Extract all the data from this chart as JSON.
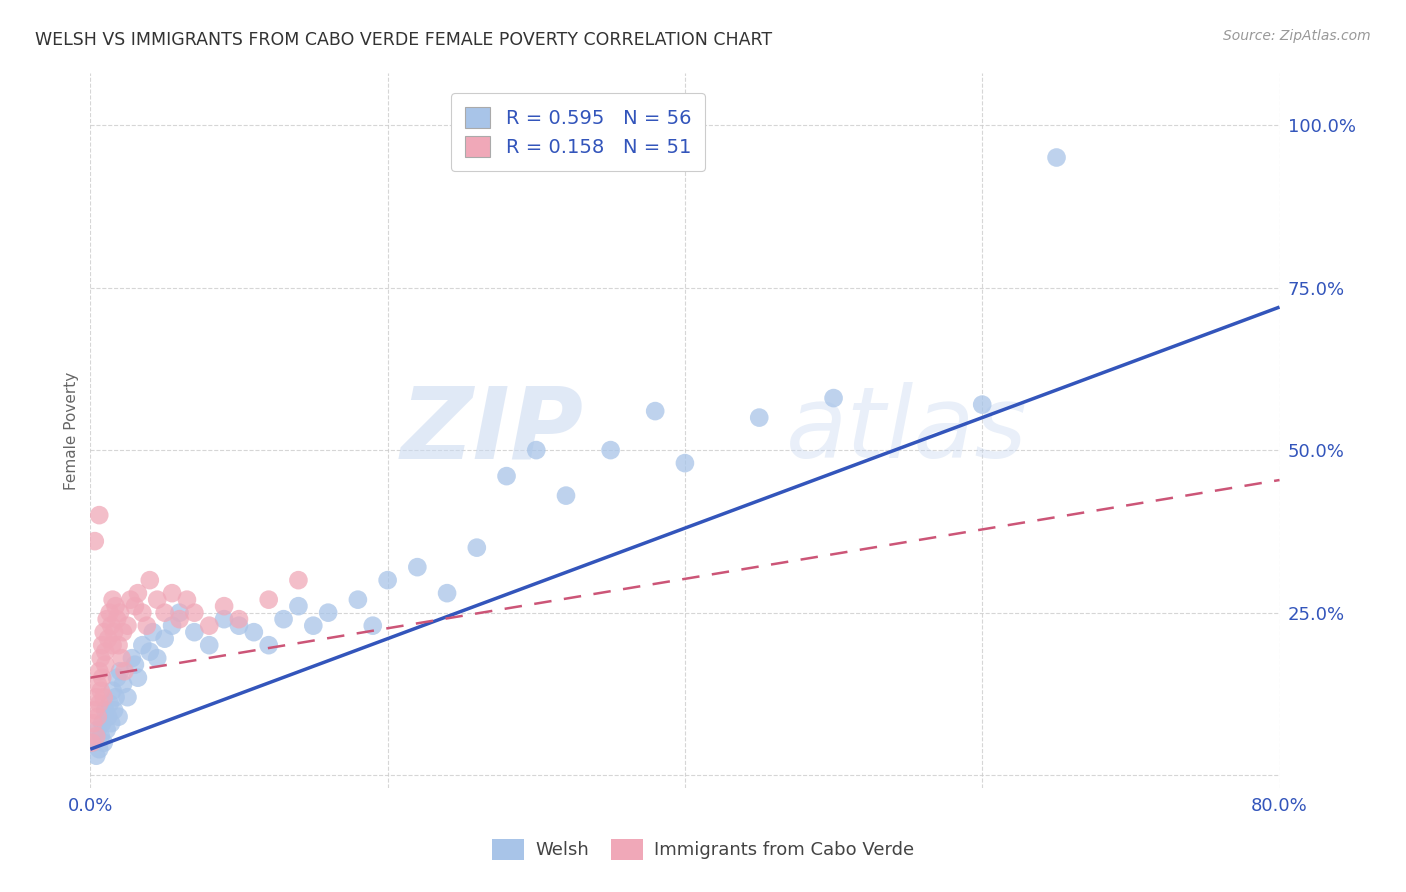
{
  "title": "WELSH VS IMMIGRANTS FROM CABO VERDE FEMALE POVERTY CORRELATION CHART",
  "source": "Source: ZipAtlas.com",
  "ylabel": "Female Poverty",
  "xlim": [
    0.0,
    0.8
  ],
  "ylim": [
    -0.02,
    1.08
  ],
  "welsh_color": "#a8c4e8",
  "cabo_verde_color": "#f0a8b8",
  "welsh_line_color": "#3355bb",
  "cabo_verde_line_color": "#cc5577",
  "welsh_R": 0.595,
  "welsh_N": 56,
  "cabo_verde_R": 0.158,
  "cabo_verde_N": 51,
  "welsh_x": [
    0.002,
    0.004,
    0.005,
    0.006,
    0.007,
    0.008,
    0.009,
    0.01,
    0.011,
    0.012,
    0.013,
    0.014,
    0.015,
    0.016,
    0.017,
    0.018,
    0.019,
    0.02,
    0.022,
    0.025,
    0.028,
    0.03,
    0.032,
    0.035,
    0.04,
    0.042,
    0.045,
    0.05,
    0.055,
    0.06,
    0.07,
    0.08,
    0.09,
    0.1,
    0.11,
    0.12,
    0.13,
    0.14,
    0.15,
    0.16,
    0.18,
    0.19,
    0.2,
    0.22,
    0.24,
    0.26,
    0.28,
    0.3,
    0.32,
    0.35,
    0.38,
    0.4,
    0.45,
    0.5,
    0.6,
    0.65
  ],
  "welsh_y": [
    0.05,
    0.03,
    0.07,
    0.04,
    0.06,
    0.08,
    0.05,
    0.1,
    0.07,
    0.09,
    0.11,
    0.08,
    0.13,
    0.1,
    0.12,
    0.15,
    0.09,
    0.16,
    0.14,
    0.12,
    0.18,
    0.17,
    0.15,
    0.2,
    0.19,
    0.22,
    0.18,
    0.21,
    0.23,
    0.25,
    0.22,
    0.2,
    0.24,
    0.23,
    0.22,
    0.2,
    0.24,
    0.26,
    0.23,
    0.25,
    0.27,
    0.23,
    0.3,
    0.32,
    0.28,
    0.35,
    0.46,
    0.5,
    0.43,
    0.5,
    0.56,
    0.48,
    0.55,
    0.58,
    0.57,
    0.95
  ],
  "cabo_verde_x": [
    0.001,
    0.002,
    0.003,
    0.004,
    0.004,
    0.005,
    0.005,
    0.006,
    0.006,
    0.007,
    0.007,
    0.008,
    0.008,
    0.009,
    0.009,
    0.01,
    0.01,
    0.011,
    0.012,
    0.013,
    0.014,
    0.015,
    0.015,
    0.016,
    0.017,
    0.018,
    0.019,
    0.02,
    0.021,
    0.022,
    0.023,
    0.025,
    0.027,
    0.03,
    0.032,
    0.035,
    0.038,
    0.04,
    0.045,
    0.05,
    0.055,
    0.06,
    0.065,
    0.07,
    0.08,
    0.09,
    0.1,
    0.12,
    0.14,
    0.003,
    0.006
  ],
  "cabo_verde_y": [
    0.05,
    0.08,
    0.1,
    0.06,
    0.12,
    0.14,
    0.09,
    0.16,
    0.11,
    0.18,
    0.13,
    0.15,
    0.2,
    0.12,
    0.22,
    0.17,
    0.19,
    0.24,
    0.21,
    0.25,
    0.23,
    0.2,
    0.27,
    0.22,
    0.26,
    0.24,
    0.2,
    0.25,
    0.18,
    0.22,
    0.16,
    0.23,
    0.27,
    0.26,
    0.28,
    0.25,
    0.23,
    0.3,
    0.27,
    0.25,
    0.28,
    0.24,
    0.27,
    0.25,
    0.23,
    0.26,
    0.24,
    0.27,
    0.3,
    0.36,
    0.4
  ],
  "watermark_zip": "ZIP",
  "watermark_atlas": "atlas"
}
